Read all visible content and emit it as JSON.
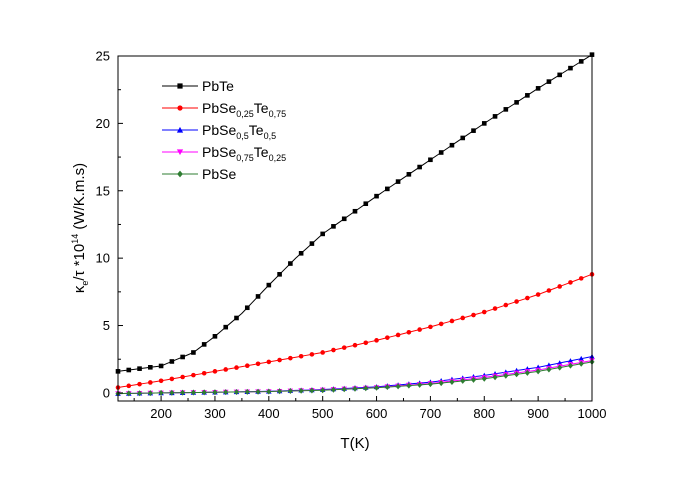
{
  "chart_data": {
    "type": "line",
    "title": "",
    "xlabel": "T(K)",
    "ylabel": {
      "base": "κ",
      "sub1": "e",
      "mid": "/τ *10",
      "sup": "14",
      "unit": " (W/K.m.s)"
    },
    "xlim": [
      120,
      1000
    ],
    "ylim": [
      -0.6,
      25
    ],
    "xticks": [
      200,
      300,
      400,
      500,
      600,
      700,
      800,
      900,
      1000
    ],
    "yticks": [
      0,
      5,
      10,
      15,
      20,
      25
    ],
    "grid": false,
    "legend_position": "top-left",
    "series": [
      {
        "label_parts": [
          {
            "t": "PbTe",
            "s": ""
          }
        ],
        "color": "#000000",
        "marker": "square",
        "x": [
          120,
          200,
          260,
          300,
          350,
          400,
          450,
          500,
          600,
          700,
          800,
          900,
          1000
        ],
        "y": [
          1.6,
          2.0,
          3.0,
          4.2,
          5.9,
          8.0,
          10.0,
          11.8,
          14.6,
          17.3,
          20.0,
          22.6,
          25.1
        ]
      },
      {
        "label_parts": [
          {
            "t": "PbSe",
            "s": ""
          },
          {
            "t": "0,25",
            "s": "sub"
          },
          {
            "t": "Te",
            "s": ""
          },
          {
            "t": "0,75",
            "s": "sub"
          }
        ],
        "color": "#ff0000",
        "marker": "circle",
        "x": [
          120,
          200,
          300,
          400,
          500,
          600,
          700,
          800,
          900,
          1000
        ],
        "y": [
          0.4,
          0.9,
          1.6,
          2.3,
          3.0,
          3.9,
          4.9,
          6.0,
          7.3,
          8.8
        ]
      },
      {
        "label_parts": [
          {
            "t": "PbSe",
            "s": ""
          },
          {
            "t": "0,5",
            "s": "sub"
          },
          {
            "t": "Te",
            "s": ""
          },
          {
            "t": "0,5",
            "s": "sub"
          }
        ],
        "color": "#0000ff",
        "marker": "triangle-up",
        "x": [
          120,
          200,
          300,
          400,
          500,
          600,
          700,
          800,
          900,
          1000
        ],
        "y": [
          -0.05,
          0.0,
          0.05,
          0.12,
          0.25,
          0.45,
          0.8,
          1.3,
          1.9,
          2.7
        ]
      },
      {
        "label_parts": [
          {
            "t": "PbSe",
            "s": ""
          },
          {
            "t": "0,75",
            "s": "sub"
          },
          {
            "t": "Te",
            "s": ""
          },
          {
            "t": "0,25",
            "s": "sub"
          }
        ],
        "color": "#ff00ff",
        "marker": "triangle-down",
        "x": [
          120,
          200,
          300,
          400,
          500,
          600,
          700,
          800,
          900,
          1000
        ],
        "y": [
          -0.05,
          0.0,
          0.05,
          0.1,
          0.22,
          0.4,
          0.7,
          1.15,
          1.7,
          2.4
        ]
      },
      {
        "label_parts": [
          {
            "t": "PbSe",
            "s": ""
          }
        ],
        "color": "#2e7d32",
        "marker": "diamond",
        "x": [
          120,
          200,
          300,
          400,
          500,
          600,
          700,
          800,
          900,
          1000
        ],
        "y": [
          -0.05,
          0.0,
          0.05,
          0.1,
          0.2,
          0.38,
          0.65,
          1.05,
          1.6,
          2.3
        ]
      }
    ]
  }
}
